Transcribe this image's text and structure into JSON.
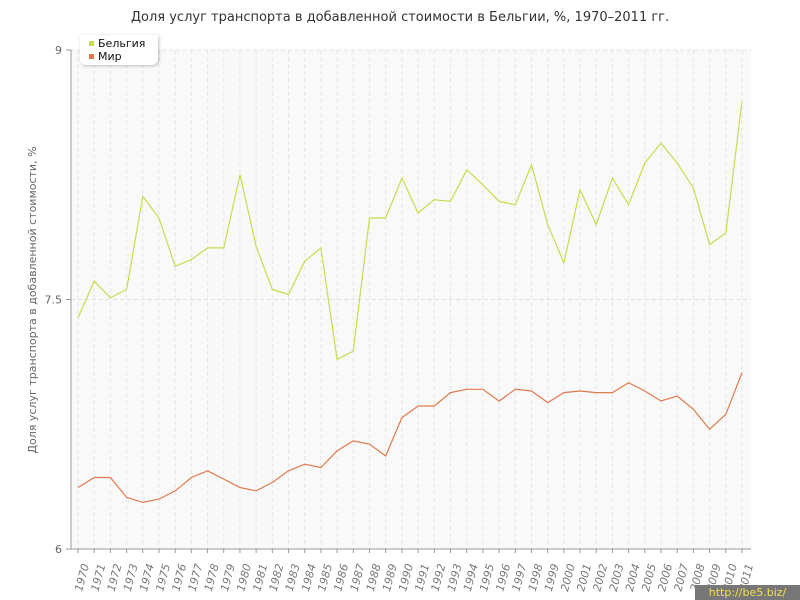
{
  "chart_data": {
    "type": "line",
    "title": "Доля услуг транспорта в добавленной стоимости в Бельгии, %, 1970–2011 гг.",
    "ylabel": "Доля услуг транспорта в добавленной стоимости, %",
    "xlabel": "",
    "ylim": [
      6,
      9
    ],
    "yticks": [
      6,
      7.5,
      9
    ],
    "ytick_labels": [
      "6",
      "7.5",
      "9"
    ],
    "grid": true,
    "legend_position": "top-left",
    "x": [
      1970,
      1971,
      1972,
      1973,
      1974,
      1975,
      1976,
      1977,
      1978,
      1979,
      1980,
      1981,
      1982,
      1983,
      1984,
      1985,
      1986,
      1987,
      1988,
      1989,
      1990,
      1991,
      1992,
      1993,
      1994,
      1995,
      1996,
      1997,
      1998,
      1999,
      2000,
      2001,
      2002,
      2003,
      2004,
      2005,
      2006,
      2007,
      2008,
      2009,
      2010,
      2011
    ],
    "x_labels": [
      "1970",
      "1971",
      "1972",
      "1973",
      "1974",
      "1975",
      "1976",
      "1977",
      "1978",
      "1979",
      "1980",
      "1981",
      "1982",
      "1983",
      "1984",
      "1985",
      "1986",
      "1987",
      "1988",
      "1989",
      "1990",
      "1991",
      "1992",
      "1993",
      "1994",
      "1995",
      "1996",
      "1997",
      "1998",
      "1999",
      "2000",
      "2001",
      "2002",
      "2003",
      "2004",
      "2005",
      "2006",
      "2007",
      "2008",
      "2009",
      "2010",
      "2011"
    ],
    "series": [
      {
        "name": "Бельгия",
        "color": "#c5dd4f",
        "values": [
          7.39,
          7.61,
          7.51,
          7.56,
          8.12,
          7.99,
          7.7,
          7.74,
          7.81,
          7.81,
          8.25,
          7.82,
          7.56,
          7.53,
          7.73,
          7.81,
          7.14,
          7.19,
          7.99,
          7.99,
          8.23,
          8.02,
          8.1,
          8.09,
          8.28,
          8.19,
          8.09,
          8.07,
          8.31,
          7.95,
          7.72,
          8.16,
          7.95,
          8.23,
          8.07,
          8.32,
          8.44,
          8.32,
          8.17,
          7.83,
          7.9,
          8.69
        ]
      },
      {
        "name": "Мир",
        "color": "#e07a4d",
        "values": [
          6.37,
          6.43,
          6.43,
          6.31,
          6.28,
          6.3,
          6.35,
          6.43,
          6.47,
          6.42,
          6.37,
          6.35,
          6.4,
          6.47,
          6.51,
          6.49,
          6.59,
          6.65,
          6.63,
          6.56,
          6.79,
          6.86,
          6.86,
          6.94,
          6.96,
          6.96,
          6.89,
          6.96,
          6.95,
          6.88,
          6.94,
          6.95,
          6.94,
          6.94,
          7.0,
          6.95,
          6.89,
          6.92,
          6.84,
          6.72,
          6.81,
          7.06
        ]
      }
    ]
  },
  "watermark": "http://be5.biz/"
}
